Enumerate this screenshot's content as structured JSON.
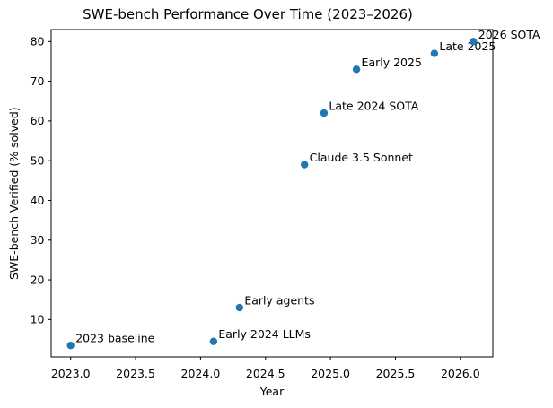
{
  "figure": {
    "title": "SWE-bench Performance Over Time (2023–2026)",
    "xlabel": "Year",
    "ylabel": "SWE-bench Verified (% solved)"
  },
  "chart_data": {
    "type": "scatter",
    "title": "SWE-bench Performance Over Time (2023–2026)",
    "xlabel": "Year",
    "ylabel": "SWE-bench Verified (% solved)",
    "xlim": [
      2022.85,
      2026.25
    ],
    "ylim": [
      0.6,
      83.0
    ],
    "x_ticks": [
      2023.0,
      2023.5,
      2024.0,
      2024.5,
      2025.0,
      2025.5,
      2026.0
    ],
    "x_tick_labels": [
      "2023.0",
      "2023.5",
      "2024.0",
      "2024.5",
      "2025.0",
      "2025.5",
      "2026.0"
    ],
    "y_ticks": [
      10,
      20,
      30,
      40,
      50,
      60,
      70,
      80
    ],
    "y_tick_labels": [
      "10",
      "20",
      "30",
      "40",
      "50",
      "60",
      "70",
      "80"
    ],
    "grid": false,
    "legend": "none",
    "marker_color": "#1f77b4",
    "axis_color": "#000000",
    "background_color": "#ffffff",
    "points": [
      {
        "x": 2023.0,
        "y": 3.5,
        "label": "2023 baseline"
      },
      {
        "x": 2024.1,
        "y": 4.5,
        "label": "Early 2024 LLMs"
      },
      {
        "x": 2024.3,
        "y": 13,
        "label": "Early agents"
      },
      {
        "x": 2024.8,
        "y": 49,
        "label": "Claude 3.5 Sonnet"
      },
      {
        "x": 2024.95,
        "y": 62,
        "label": "Late 2024 SOTA"
      },
      {
        "x": 2025.2,
        "y": 73,
        "label": "Early 2025"
      },
      {
        "x": 2025.8,
        "y": 77,
        "label": "Late 2025"
      },
      {
        "x": 2026.1,
        "y": 80,
        "label": "2026 SOTA"
      }
    ]
  }
}
